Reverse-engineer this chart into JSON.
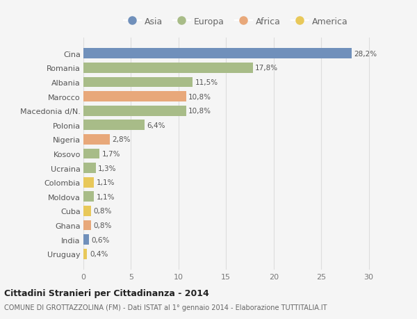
{
  "categories": [
    "Cina",
    "Romania",
    "Albania",
    "Marocco",
    "Macedonia d/N.",
    "Polonia",
    "Nigeria",
    "Kosovo",
    "Ucraina",
    "Colombia",
    "Moldova",
    "Cuba",
    "Ghana",
    "India",
    "Uruguay"
  ],
  "values": [
    28.2,
    17.8,
    11.5,
    10.8,
    10.8,
    6.4,
    2.8,
    1.7,
    1.3,
    1.1,
    1.1,
    0.8,
    0.8,
    0.6,
    0.4
  ],
  "labels": [
    "28,2%",
    "17,8%",
    "11,5%",
    "10,8%",
    "10,8%",
    "6,4%",
    "2,8%",
    "1,7%",
    "1,3%",
    "1,1%",
    "1,1%",
    "0,8%",
    "0,8%",
    "0,6%",
    "0,4%"
  ],
  "continents": [
    "Asia",
    "Europa",
    "Europa",
    "Africa",
    "Europa",
    "Europa",
    "Africa",
    "Europa",
    "Europa",
    "America",
    "Europa",
    "America",
    "Africa",
    "Asia",
    "America"
  ],
  "colors": {
    "Asia": "#7090bb",
    "Europa": "#a8bc88",
    "Africa": "#e8a87a",
    "America": "#e8c85a"
  },
  "legend_order": [
    "Asia",
    "Europa",
    "Africa",
    "America"
  ],
  "title_bold": "Cittadini Stranieri per Cittadinanza - 2014",
  "subtitle": "COMUNE DI GROTTAZZOLINA (FM) - Dati ISTAT al 1° gennaio 2014 - Elaborazione TUTTITALIA.IT",
  "xlim": [
    0,
    32
  ],
  "xticks": [
    0,
    5,
    10,
    15,
    20,
    25,
    30
  ],
  "bg_color": "#f5f5f5",
  "grid_color": "#dddddd",
  "bar_height": 0.72
}
